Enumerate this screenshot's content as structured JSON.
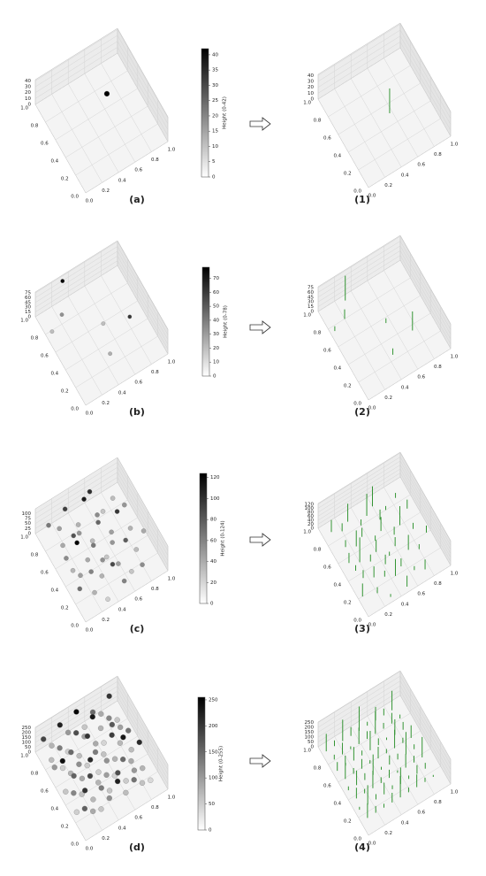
{
  "floor_ticks": [
    {
      "value": 0,
      "label": "0.0"
    },
    {
      "value": 0.2,
      "label": "0.2"
    },
    {
      "value": 0.4,
      "label": "0.4"
    },
    {
      "value": 0.6,
      "label": "0.6"
    },
    {
      "value": 0.8,
      "label": "0.8"
    },
    {
      "value": 1,
      "label": "1.0"
    }
  ],
  "rows": [
    {
      "left": {
        "label": "(a)",
        "zlim": [
          0,
          42
        ],
        "zticks": [
          0,
          10,
          20,
          30,
          40
        ],
        "points": [
          [
            0.57,
            0.51,
            42
          ]
        ]
      },
      "colorbar": {
        "label": "Height (0-42)",
        "lim": [
          0,
          42
        ],
        "ticks": [
          0,
          5,
          10,
          15,
          20,
          25,
          30,
          35,
          40
        ]
      },
      "right": {
        "label": "(1)",
        "zlim": [
          0,
          42
        ],
        "zticks": [
          0,
          10,
          20,
          30,
          40
        ]
      }
    },
    {
      "left": {
        "label": "(b)",
        "zlim": [
          0,
          78
        ],
        "zticks": [
          0,
          15,
          30,
          45,
          60,
          75
        ],
        "points": [
          [
            0.3,
            0.95,
            78
          ],
          [
            0.2,
            0.8,
            30
          ],
          [
            0.05,
            0.75,
            15
          ],
          [
            0.55,
            0.55,
            15
          ],
          [
            0.75,
            0.35,
            60
          ],
          [
            0.45,
            0.25,
            20
          ]
        ]
      },
      "colorbar": {
        "label": "Height (0-78)",
        "lim": [
          0,
          78
        ],
        "ticks": [
          0,
          10,
          20,
          30,
          40,
          50,
          60,
          70
        ]
      },
      "right": {
        "label": "(2)",
        "zlim": [
          0,
          78
        ],
        "zticks": [
          0,
          15,
          30,
          45,
          60,
          75
        ]
      }
    },
    {
      "left": {
        "label": "(c)",
        "zlim": [
          0,
          124
        ],
        "zticks": [
          0,
          25,
          50,
          75,
          100
        ],
        "points": [
          [
            0.1,
            0.9,
            60
          ],
          [
            0.2,
            0.85,
            40
          ],
          [
            0.3,
            0.9,
            90
          ],
          [
            0.4,
            0.8,
            30
          ],
          [
            0.5,
            0.85,
            110
          ],
          [
            0.6,
            0.75,
            50
          ],
          [
            0.7,
            0.8,
            20
          ],
          [
            0.15,
            0.7,
            35
          ],
          [
            0.25,
            0.65,
            80
          ],
          [
            0.35,
            0.7,
            45
          ],
          [
            0.45,
            0.6,
            25
          ],
          [
            0.55,
            0.65,
            70
          ],
          [
            0.65,
            0.55,
            40
          ],
          [
            0.75,
            0.6,
            95
          ],
          [
            0.85,
            0.5,
            30
          ],
          [
            0.1,
            0.55,
            50
          ],
          [
            0.2,
            0.5,
            124
          ],
          [
            0.3,
            0.45,
            35
          ],
          [
            0.4,
            0.5,
            60
          ],
          [
            0.5,
            0.4,
            20
          ],
          [
            0.6,
            0.45,
            45
          ],
          [
            0.7,
            0.35,
            75
          ],
          [
            0.8,
            0.3,
            25
          ],
          [
            0.15,
            0.35,
            40
          ],
          [
            0.25,
            0.3,
            55
          ],
          [
            0.35,
            0.25,
            30
          ],
          [
            0.45,
            0.2,
            85
          ],
          [
            0.55,
            0.25,
            40
          ],
          [
            0.65,
            0.15,
            20
          ],
          [
            0.75,
            0.1,
            50
          ],
          [
            0.05,
            0.2,
            65
          ],
          [
            0.2,
            0.15,
            30
          ],
          [
            0.9,
            0.7,
            45
          ],
          [
            0.85,
            0.85,
            25
          ],
          [
            0.95,
            0.4,
            35
          ],
          [
            0.3,
            0.05,
            15
          ],
          [
            0.5,
            0.05,
            55
          ],
          [
            0.6,
            0.9,
            100
          ],
          [
            0.12,
            0.45,
            28
          ],
          [
            0.42,
            0.35,
            48
          ]
        ]
      },
      "colorbar": {
        "label": "Height (0-124)",
        "lim": [
          0,
          124
        ],
        "ticks": [
          0,
          20,
          40,
          60,
          80,
          100,
          120
        ]
      },
      "right": {
        "label": "(3)",
        "zlim": [
          0,
          124
        ],
        "zticks": [
          0,
          20,
          40,
          60,
          80,
          100,
          120
        ]
      }
    },
    {
      "left": {
        "label": "(d)",
        "zlim": [
          0,
          255
        ],
        "zticks": [
          0,
          50,
          100,
          150,
          200,
          250
        ],
        "points": [
          [
            0.05,
            0.92,
            180
          ],
          [
            0.15,
            0.92,
            60
          ],
          [
            0.25,
            0.92,
            220
          ],
          [
            0.35,
            0.92,
            90
          ],
          [
            0.45,
            0.92,
            250
          ],
          [
            0.55,
            0.92,
            40
          ],
          [
            0.65,
            0.92,
            140
          ],
          [
            0.75,
            0.92,
            70
          ],
          [
            0.85,
            0.92,
            200
          ],
          [
            0.08,
            0.81,
            50
          ],
          [
            0.18,
            0.81,
            120
          ],
          [
            0.28,
            0.81,
            30
          ],
          [
            0.38,
            0.81,
            170
          ],
          [
            0.48,
            0.81,
            80
          ],
          [
            0.58,
            0.81,
            230
          ],
          [
            0.68,
            0.81,
            60
          ],
          [
            0.78,
            0.81,
            110
          ],
          [
            0.88,
            0.81,
            40
          ],
          [
            0.05,
            0.7,
            90
          ],
          [
            0.15,
            0.7,
            30
          ],
          [
            0.25,
            0.7,
            140
          ],
          [
            0.35,
            0.7,
            50
          ],
          [
            0.45,
            0.7,
            200
          ],
          [
            0.55,
            0.7,
            70
          ],
          [
            0.65,
            0.7,
            25
          ],
          [
            0.75,
            0.7,
            160
          ],
          [
            0.85,
            0.7,
            80
          ],
          [
            0.08,
            0.59,
            240
          ],
          [
            0.18,
            0.59,
            60
          ],
          [
            0.28,
            0.59,
            100
          ],
          [
            0.38,
            0.59,
            35
          ],
          [
            0.48,
            0.59,
            120
          ],
          [
            0.58,
            0.59,
            45
          ],
          [
            0.68,
            0.59,
            190
          ],
          [
            0.78,
            0.59,
            55
          ],
          [
            0.88,
            0.59,
            130
          ],
          [
            0.05,
            0.48,
            40
          ],
          [
            0.15,
            0.48,
            150
          ],
          [
            0.25,
            0.48,
            70
          ],
          [
            0.35,
            0.48,
            210
          ],
          [
            0.45,
            0.48,
            30
          ],
          [
            0.55,
            0.48,
            95
          ],
          [
            0.65,
            0.48,
            60
          ],
          [
            0.75,
            0.48,
            230
          ],
          [
            0.85,
            0.48,
            50
          ],
          [
            0.08,
            0.37,
            110
          ],
          [
            0.18,
            0.37,
            45
          ],
          [
            0.28,
            0.37,
            180
          ],
          [
            0.38,
            0.37,
            60
          ],
          [
            0.48,
            0.37,
            85
          ],
          [
            0.58,
            0.37,
            25
          ],
          [
            0.68,
            0.37,
            140
          ],
          [
            0.78,
            0.37,
            70
          ],
          [
            0.88,
            0.37,
            210
          ],
          [
            0.05,
            0.26,
            30
          ],
          [
            0.15,
            0.26,
            200
          ],
          [
            0.25,
            0.26,
            55
          ],
          [
            0.35,
            0.26,
            120
          ],
          [
            0.45,
            0.26,
            40
          ],
          [
            0.55,
            0.26,
            170
          ],
          [
            0.65,
            0.26,
            35
          ],
          [
            0.75,
            0.26,
            90
          ],
          [
            0.85,
            0.26,
            60
          ],
          [
            0.08,
            0.15,
            150
          ],
          [
            0.18,
            0.15,
            70
          ],
          [
            0.28,
            0.15,
            40
          ],
          [
            0.38,
            0.15,
            100
          ],
          [
            0.48,
            0.15,
            220
          ],
          [
            0.58,
            0.15,
            50
          ],
          [
            0.68,
            0.15,
            130
          ],
          [
            0.78,
            0.15,
            45
          ],
          [
            0.88,
            0.15,
            20
          ]
        ]
      },
      "colorbar": {
        "label": "Height (0-255)",
        "lim": [
          0,
          255
        ],
        "ticks": [
          0,
          50,
          100,
          150,
          200,
          250
        ]
      },
      "right": {
        "label": "(4)",
        "zlim": [
          0,
          255
        ],
        "zticks": [
          0,
          50,
          100,
          150,
          200,
          250
        ]
      }
    }
  ]
}
